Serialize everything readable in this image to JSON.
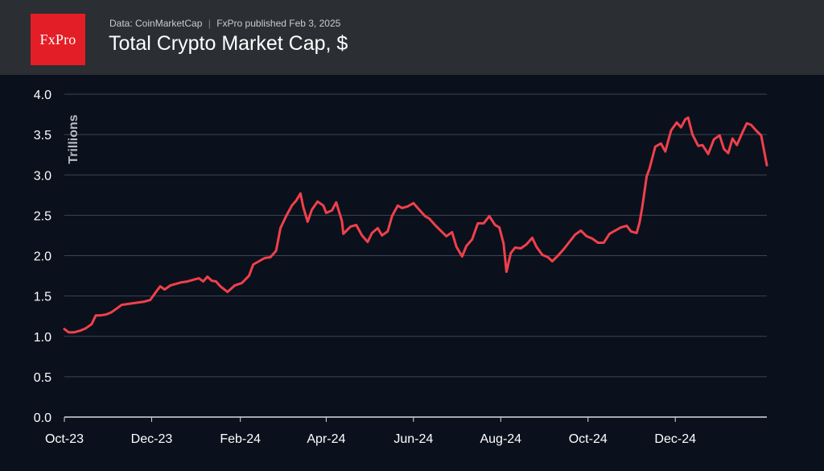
{
  "header": {
    "logo_text": "FxPro",
    "source_text": "Data: CoinMarketCap",
    "separator": "|",
    "published_text": "FxPro published Feb 3, 2025",
    "title": "Total Crypto Market Cap, $"
  },
  "colors": {
    "background": "#0b111c",
    "header_bg": "#2b2e33",
    "logo_bg": "#e41e26",
    "line": "#f0404c",
    "grid": "#3d4350"
  },
  "chart_data": {
    "type": "line",
    "title": "Total Crypto Market Cap, $",
    "xlabel": "",
    "ylabel": "Trillions",
    "ylim": [
      0,
      4
    ],
    "yticks": [
      "0.0",
      "0.5",
      "1.0",
      "1.5",
      "2.0",
      "2.5",
      "3.0",
      "3.5",
      "4.0"
    ],
    "xticks": [
      "Oct-23",
      "Dec-23",
      "Feb-24",
      "Apr-24",
      "Jun-24",
      "Aug-24",
      "Oct-24",
      "Dec-24"
    ],
    "xlim": [
      "2023-10-01",
      "2025-02-03"
    ],
    "grid": "horizontal",
    "series": [
      {
        "x": [
          "2023-10-01",
          "2023-10-04",
          "2023-10-08",
          "2023-10-12",
          "2023-10-16",
          "2023-10-20",
          "2023-10-23",
          "2023-10-26",
          "2023-10-30",
          "2023-11-03",
          "2023-11-07",
          "2023-11-10",
          "2023-11-14",
          "2023-11-18",
          "2023-11-22",
          "2023-11-26",
          "2023-11-30",
          "2023-12-04",
          "2023-12-07",
          "2023-12-10",
          "2023-12-14",
          "2023-12-18",
          "2023-12-22",
          "2023-12-26",
          "2023-12-30",
          "2024-01-03",
          "2024-01-06",
          "2024-01-09",
          "2024-01-12",
          "2024-01-15",
          "2024-01-18",
          "2024-01-23",
          "2024-01-28",
          "2024-02-02",
          "2024-02-07",
          "2024-02-10",
          "2024-02-14",
          "2024-02-18",
          "2024-02-22",
          "2024-02-26",
          "2024-02-29",
          "2024-03-04",
          "2024-03-08",
          "2024-03-11",
          "2024-03-14",
          "2024-03-16",
          "2024-03-19",
          "2024-03-22",
          "2024-03-26",
          "2024-03-30",
          "2024-04-01",
          "2024-04-05",
          "2024-04-08",
          "2024-04-12",
          "2024-04-13",
          "2024-04-18",
          "2024-04-22",
          "2024-04-26",
          "2024-04-30",
          "2024-05-03",
          "2024-05-07",
          "2024-05-10",
          "2024-05-14",
          "2024-05-17",
          "2024-05-21",
          "2024-05-24",
          "2024-05-28",
          "2024-06-01",
          "2024-06-05",
          "2024-06-09",
          "2024-06-12",
          "2024-06-16",
          "2024-06-20",
          "2024-06-24",
          "2024-06-28",
          "2024-07-01",
          "2024-07-05",
          "2024-07-08",
          "2024-07-12",
          "2024-07-16",
          "2024-07-20",
          "2024-07-24",
          "2024-07-28",
          "2024-07-31",
          "2024-08-03",
          "2024-08-05",
          "2024-08-08",
          "2024-08-11",
          "2024-08-15",
          "2024-08-19",
          "2024-08-23",
          "2024-08-26",
          "2024-08-30",
          "2024-09-03",
          "2024-09-06",
          "2024-09-10",
          "2024-09-14",
          "2024-09-18",
          "2024-09-22",
          "2024-09-26",
          "2024-09-30",
          "2024-10-04",
          "2024-10-08",
          "2024-10-12",
          "2024-10-16",
          "2024-10-20",
          "2024-10-24",
          "2024-10-28",
          "2024-10-31",
          "2024-11-04",
          "2024-11-06",
          "2024-11-08",
          "2024-11-11",
          "2024-11-13",
          "2024-11-17",
          "2024-11-21",
          "2024-11-24",
          "2024-11-28",
          "2024-12-02",
          "2024-12-05",
          "2024-12-08",
          "2024-12-10",
          "2024-12-13",
          "2024-12-17",
          "2024-12-20",
          "2024-12-24",
          "2024-12-28",
          "2025-01-01",
          "2025-01-04",
          "2025-01-07",
          "2025-01-10",
          "2025-01-13",
          "2025-01-17",
          "2025-01-20",
          "2025-01-23",
          "2025-01-27",
          "2025-01-30",
          "2025-02-03"
        ],
        "y": [
          1.09,
          1.05,
          1.05,
          1.07,
          1.1,
          1.15,
          1.26,
          1.26,
          1.27,
          1.3,
          1.35,
          1.39,
          1.4,
          1.41,
          1.42,
          1.43,
          1.45,
          1.55,
          1.62,
          1.58,
          1.63,
          1.65,
          1.67,
          1.68,
          1.7,
          1.72,
          1.68,
          1.74,
          1.69,
          1.68,
          1.62,
          1.55,
          1.63,
          1.66,
          1.75,
          1.89,
          1.93,
          1.97,
          1.98,
          2.06,
          2.34,
          2.49,
          2.62,
          2.68,
          2.77,
          2.6,
          2.42,
          2.57,
          2.67,
          2.62,
          2.53,
          2.56,
          2.66,
          2.43,
          2.27,
          2.36,
          2.38,
          2.25,
          2.17,
          2.28,
          2.34,
          2.25,
          2.3,
          2.49,
          2.62,
          2.59,
          2.61,
          2.65,
          2.57,
          2.49,
          2.46,
          2.38,
          2.31,
          2.24,
          2.29,
          2.11,
          1.99,
          2.12,
          2.2,
          2.4,
          2.4,
          2.49,
          2.38,
          2.35,
          2.15,
          1.8,
          2.03,
          2.1,
          2.09,
          2.14,
          2.22,
          2.11,
          2.01,
          1.98,
          1.93,
          2.0,
          2.08,
          2.17,
          2.26,
          2.31,
          2.24,
          2.21,
          2.16,
          2.16,
          2.27,
          2.31,
          2.35,
          2.37,
          2.3,
          2.28,
          2.41,
          2.61,
          2.98,
          3.08,
          3.35,
          3.39,
          3.29,
          3.55,
          3.65,
          3.59,
          3.69,
          3.71,
          3.5,
          3.36,
          3.37,
          3.26,
          3.44,
          3.49,
          3.32,
          3.27,
          3.45,
          3.37,
          3.53,
          3.64,
          3.62,
          3.54,
          3.49,
          3.12
        ]
      }
    ]
  }
}
